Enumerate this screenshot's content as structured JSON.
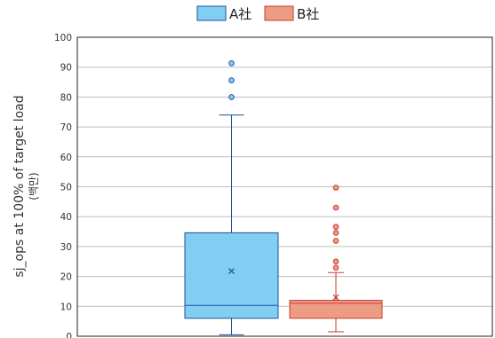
{
  "chart_data": {
    "type": "boxplot",
    "ylabel": "sj_ops at 100% of target load",
    "ylabel_sub": "(백만)",
    "ylim": [
      0,
      100
    ],
    "yticks": [
      0,
      10,
      20,
      30,
      40,
      50,
      60,
      70,
      80,
      90,
      100
    ],
    "grid": true,
    "legend_position": "top",
    "series": [
      {
        "name": "A社",
        "color": "#80cff3",
        "edge_color": "#1f4e9c",
        "whisker_low": 0.5,
        "q1": 6,
        "median": 10.3,
        "q3": 34.6,
        "whisker_high": 74,
        "mean": 21.8,
        "outliers": [
          80,
          85.6,
          91.3
        ]
      },
      {
        "name": "B社",
        "color": "#ec9c82",
        "edge_color": "#cc3b35",
        "whisker_low": 1.5,
        "q1": 6,
        "median": 11,
        "q3": 12,
        "whisker_high": 21.3,
        "mean": 13,
        "outliers": [
          22.9,
          25,
          31.9,
          34.6,
          36.6,
          43,
          49.7
        ]
      }
    ]
  }
}
